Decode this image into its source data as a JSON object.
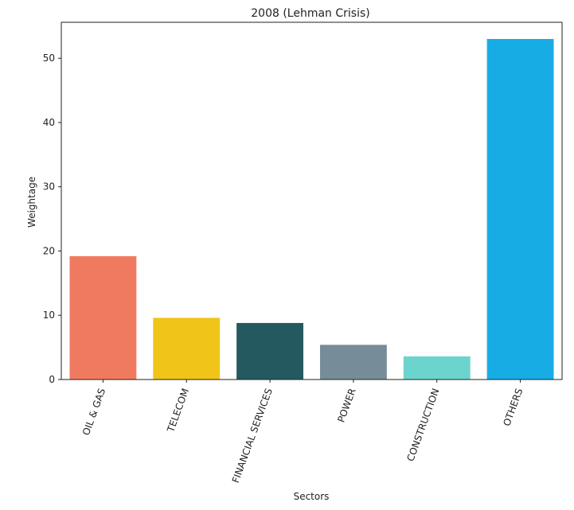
{
  "chart_data": {
    "type": "bar",
    "title": "2008 (Lehman Crisis)",
    "xlabel": "Sectors",
    "ylabel": "Weightage",
    "categories": [
      "OIL & GAS",
      "TELECOM",
      "FINANCIAL SERVICES",
      "POWER",
      "CONSTRUCTION",
      "OTHERS"
    ],
    "values": [
      19.2,
      9.6,
      8.8,
      5.4,
      3.6,
      53.0
    ],
    "colors": [
      "#f07a60",
      "#f0c419",
      "#245a5f",
      "#768d99",
      "#6bd4cd",
      "#18ace5"
    ],
    "ylim": [
      0,
      55.6
    ],
    "yticks": [
      0,
      10,
      20,
      30,
      40,
      50
    ],
    "grid": false,
    "legend": "none"
  }
}
